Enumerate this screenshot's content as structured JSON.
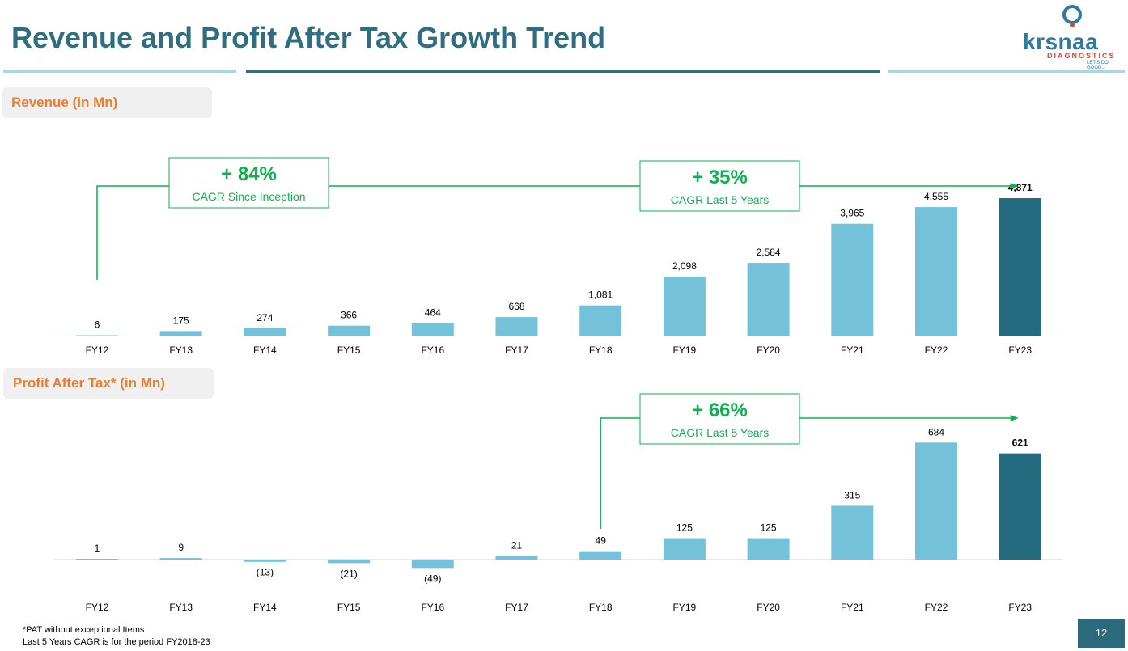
{
  "page": {
    "title": "Revenue and Profit After Tax Growth Trend",
    "page_number": "12",
    "footnote_1": "*PAT without exceptional Items",
    "footnote_2": "Last 5 Years CAGR is for the period FY2018-23"
  },
  "logo": {
    "word": "krsnaa",
    "sub": "DIAGNOSTICS",
    "tagline": "LET'S DO GOOD..."
  },
  "colors": {
    "title": "#2f6e80",
    "bar": "#74c2da",
    "highlight_bar": "#226b7e",
    "accent": "#ec7d2f",
    "cagr_green": "#0fb04f",
    "logo_blue": "#2f7aa0",
    "logo_red": "#e2442f"
  },
  "chart_data": [
    {
      "type": "bar",
      "label": "Revenue (in Mn)",
      "categories": [
        "FY12",
        "FY13",
        "FY14",
        "FY15",
        "FY16",
        "FY17",
        "FY18",
        "FY19",
        "FY20",
        "FY21",
        "FY22",
        "FY23"
      ],
      "values": [
        6,
        175,
        274,
        366,
        464,
        668,
        1081,
        2098,
        2584,
        3965,
        4555,
        4871
      ],
      "value_labels": [
        "6",
        "175",
        "274",
        "366",
        "464",
        "668",
        "1,081",
        "2,098",
        "2,584",
        "3,965",
        "4,555",
        "4,871"
      ],
      "highlight_index": 11,
      "annotations": [
        {
          "value": "+ 84%",
          "text": "CAGR Since Inception",
          "from": "FY12",
          "to": "FY23"
        },
        {
          "value": "+ 35%",
          "text": "CAGR Last 5 Years",
          "from": "FY18",
          "to": "FY23"
        }
      ]
    },
    {
      "type": "bar",
      "label": "Profit After Tax* (in Mn)",
      "categories": [
        "FY12",
        "FY13",
        "FY14",
        "FY15",
        "FY16",
        "FY17",
        "FY18",
        "FY19",
        "FY20",
        "FY21",
        "FY22",
        "FY23"
      ],
      "values": [
        1,
        9,
        -13,
        -21,
        -49,
        21,
        49,
        125,
        125,
        315,
        684,
        621
      ],
      "value_labels": [
        "1",
        "9",
        "(13)",
        "(21)",
        "(49)",
        "21",
        "49",
        "125",
        "125",
        "315",
        "684",
        "621"
      ],
      "highlight_index": 11,
      "annotations": [
        {
          "value": "+ 66%",
          "text": "CAGR Last 5 Years",
          "from": "FY18",
          "to": "FY23"
        }
      ]
    }
  ]
}
